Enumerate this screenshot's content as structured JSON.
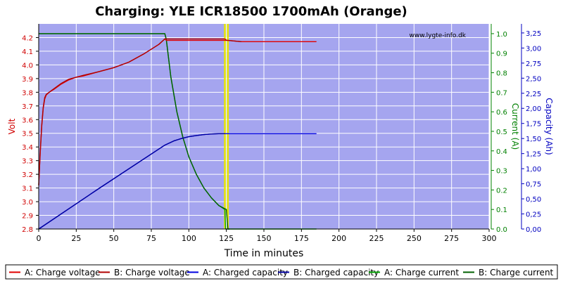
{
  "chart_data": {
    "type": "line",
    "title": "Charging: YLE ICR18500 1700mAh (Orange)",
    "watermark": "www.lygte-info.dk",
    "xlabel": "Time in minutes",
    "ylabel_left": "Volt",
    "ylabel_right1": "Current (A)",
    "ylabel_right2": "Capacity (Ah)",
    "xlim": [
      0,
      300
    ],
    "ylim_voltage": [
      2.8,
      4.3
    ],
    "ylim_current": [
      0,
      1.05
    ],
    "ylim_capacity": [
      0,
      3.4
    ],
    "x_ticks": [
      "0",
      "25",
      "50",
      "75",
      "100",
      "125",
      "150",
      "175",
      "200",
      "225",
      "250",
      "275",
      "300"
    ],
    "voltage_ticks": [
      "2.8",
      "2.9",
      "3.0",
      "3.1",
      "3.2",
      "3.3",
      "3.4",
      "3.5",
      "3.6",
      "3.7",
      "3.8",
      "3.9",
      "4.0",
      "4.1",
      "4.2"
    ],
    "current_ticks": [
      "0.0",
      "0.1",
      "0.2",
      "0.3",
      "0.4",
      "0.5",
      "0.6",
      "0.7",
      "0.8",
      "0.9",
      "1.0"
    ],
    "capacity_ticks": [
      "0,00",
      "0,25",
      "0,50",
      "0,75",
      "1,00",
      "1,25",
      "1,50",
      "1,75",
      "2,00",
      "2,25",
      "2,50",
      "2,75",
      "3,00",
      "3,25"
    ],
    "grid": true,
    "markers": [
      124,
      126
    ],
    "legend_position": "bottom",
    "colors": {
      "plot_bg": "#a5a5ef",
      "voltage_a": "#e00000",
      "voltage_b": "#b00000",
      "capacity_a": "#0000e0",
      "capacity_b": "#0000a0",
      "current_a": "#00a000",
      "current_b": "#006000",
      "marker": "#e8e800",
      "axis_left": "#d00000",
      "axis_current": "#008000",
      "axis_capacity": "#0000c0"
    },
    "series": [
      {
        "name": "A: Charge voltage",
        "axis": "voltage",
        "colorKey": "voltage_a",
        "x": [
          0,
          1,
          2,
          3,
          4,
          5,
          7,
          10,
          15,
          20,
          25,
          30,
          40,
          50,
          60,
          70,
          80,
          84,
          85,
          100,
          120,
          124,
          125,
          126,
          130,
          135,
          137,
          150,
          185
        ],
        "y": [
          3.12,
          3.35,
          3.55,
          3.68,
          3.75,
          3.78,
          3.8,
          3.82,
          3.86,
          3.89,
          3.91,
          3.92,
          3.95,
          3.98,
          4.02,
          4.08,
          4.15,
          4.19,
          4.18,
          4.18,
          4.18,
          4.18,
          4.18,
          4.18,
          4.175,
          4.17,
          4.17,
          4.17,
          4.17
        ]
      },
      {
        "name": "B: Charge voltage",
        "axis": "voltage",
        "colorKey": "voltage_b",
        "x": [
          0,
          1,
          2,
          3,
          4,
          5,
          7,
          10,
          15,
          20,
          25,
          30,
          40,
          50,
          60,
          70,
          80,
          84,
          85,
          100,
          120,
          124,
          125,
          126,
          130,
          135
        ],
        "y": [
          3.12,
          3.36,
          3.56,
          3.69,
          3.76,
          3.785,
          3.8,
          3.825,
          3.865,
          3.895,
          3.91,
          3.925,
          3.95,
          3.98,
          4.02,
          4.08,
          4.15,
          4.19,
          4.19,
          4.19,
          4.19,
          4.19,
          4.18,
          4.18,
          4.175,
          4.17
        ]
      },
      {
        "name": "A: Charged capacity",
        "axis": "capacity",
        "colorKey": "capacity_a",
        "x": [
          0,
          40,
          84,
          90,
          95,
          100,
          105,
          110,
          115,
          120,
          125,
          185
        ],
        "y": [
          0.0,
          0.67,
          1.39,
          1.46,
          1.5,
          1.53,
          1.55,
          1.565,
          1.575,
          1.58,
          1.58,
          1.58
        ]
      },
      {
        "name": "B: Charged capacity",
        "axis": "capacity",
        "colorKey": "capacity_b",
        "x": [
          0,
          40,
          84,
          90,
          95,
          100,
          105,
          110,
          115,
          120,
          124
        ],
        "y": [
          0.0,
          0.67,
          1.39,
          1.46,
          1.5,
          1.53,
          1.55,
          1.565,
          1.575,
          1.58,
          1.58
        ]
      },
      {
        "name": "A: Charge current",
        "axis": "current",
        "colorKey": "current_a",
        "x": [
          0,
          84,
          85,
          88,
          92,
          96,
          100,
          105,
          110,
          115,
          120,
          124,
          124.5,
          125,
          185
        ],
        "y": [
          1.0,
          1.0,
          0.97,
          0.78,
          0.6,
          0.47,
          0.37,
          0.28,
          0.21,
          0.16,
          0.12,
          0.1,
          0.0,
          0.0,
          0.0
        ]
      },
      {
        "name": "B: Charge current",
        "axis": "current",
        "colorKey": "current_b",
        "x": [
          0,
          84,
          85,
          88,
          92,
          96,
          100,
          105,
          110,
          115,
          120,
          125,
          126,
          127
        ],
        "y": [
          1.0,
          1.0,
          0.97,
          0.78,
          0.6,
          0.47,
          0.37,
          0.28,
          0.21,
          0.16,
          0.12,
          0.1,
          0.0,
          0.0
        ]
      }
    ]
  }
}
